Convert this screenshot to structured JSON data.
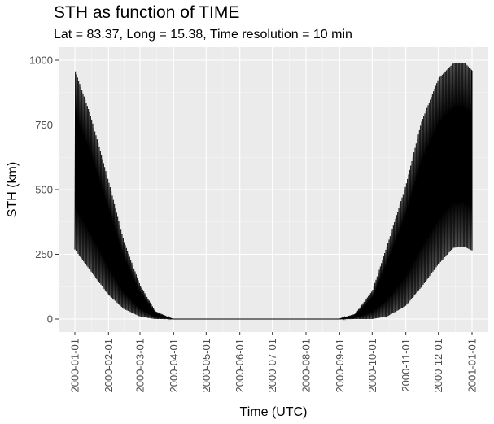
{
  "chart_data": {
    "type": "line",
    "title": "STH as function of TIME",
    "subtitle": "Lat = 83.37, Long = 15.38, Time resolution = 10 min",
    "xlabel": "Time (UTC)",
    "ylabel": "STH (km)",
    "x_ticks": [
      "2000-01-01",
      "2000-02-01",
      "2000-03-01",
      "2000-04-01",
      "2000-05-01",
      "2000-06-01",
      "2000-07-01",
      "2000-08-01",
      "2000-09-01",
      "2000-10-01",
      "2000-11-01",
      "2000-12-01",
      "2001-01-01"
    ],
    "y_ticks": [
      0,
      250,
      500,
      750,
      1000
    ],
    "ylim": [
      0,
      1000
    ],
    "xlim": [
      "2000-01-01",
      "2001-01-01"
    ],
    "grid": true,
    "background": "#ebebeb",
    "line_color": "#000000",
    "series": [
      {
        "description_of_band": "daily oscillation of STH; band between daily minimum and daily maximum",
        "daily_max": {
          "x": [
            "2000-01-01",
            "2000-01-15",
            "2000-02-01",
            "2000-02-15",
            "2000-03-01",
            "2000-03-15",
            "2000-03-31",
            "2000-04-15",
            "2000-05-01",
            "2000-06-01",
            "2000-07-01",
            "2000-08-01",
            "2000-08-31",
            "2000-09-15",
            "2000-10-01",
            "2000-10-15",
            "2000-11-01",
            "2000-11-15",
            "2000-12-01",
            "2000-12-15",
            "2000-12-25",
            "2001-01-01"
          ],
          "y": [
            960,
            790,
            530,
            300,
            130,
            30,
            0,
            0,
            0,
            0,
            0,
            0,
            0,
            20,
            110,
            290,
            520,
            760,
            930,
            990,
            990,
            960
          ]
        },
        "daily_min": {
          "x": [
            "2000-01-01",
            "2000-01-15",
            "2000-02-01",
            "2000-02-15",
            "2000-03-01",
            "2000-03-15",
            "2000-04-01",
            "2000-05-01",
            "2000-06-01",
            "2000-07-01",
            "2000-08-01",
            "2000-09-01",
            "2000-10-01",
            "2000-10-15",
            "2000-11-01",
            "2000-11-15",
            "2000-12-01",
            "2000-12-15",
            "2000-12-25",
            "2001-01-01"
          ],
          "y": [
            270,
            190,
            95,
            40,
            10,
            0,
            0,
            0,
            0,
            0,
            0,
            0,
            0,
            10,
            50,
            120,
            210,
            275,
            280,
            265
          ]
        }
      }
    ]
  }
}
